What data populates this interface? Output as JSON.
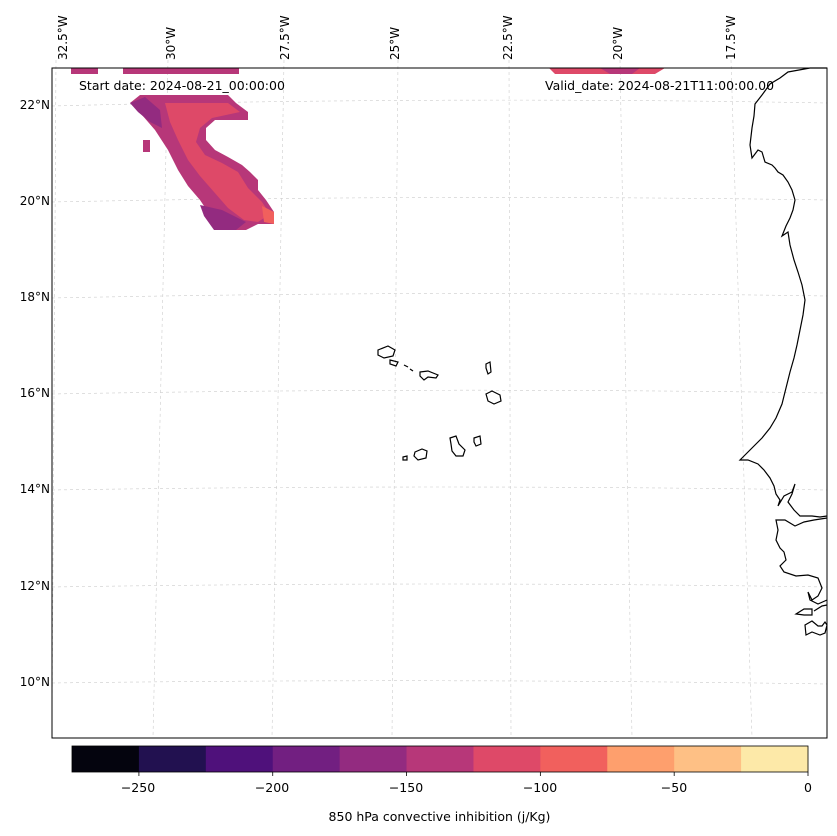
{
  "header": {
    "start_date": "Start date: 2024-08-21_00:00:00",
    "valid_date": "Valid_date: 2024-08-21T11:00:00.00"
  },
  "lon_labels": [
    "32.5°W",
    "30°W",
    "27.5°W",
    "25°W",
    "22.5°W",
    "20°W",
    "17.5°W"
  ],
  "lat_labels": [
    "22°N",
    "20°N",
    "18°N",
    "16°N",
    "14°N",
    "12°N",
    "10°N"
  ],
  "map": {
    "gridlines": "dashed",
    "coastline_color": "#000000",
    "field": "850 hPa convective inhibition"
  },
  "colorbar": {
    "label": "850 hPa convective inhibition (j/Kg)",
    "tick_labels": [
      "−250",
      "−200",
      "−150",
      "−100",
      "−50",
      "0"
    ],
    "bounds": [
      -275,
      -250,
      -225,
      -200,
      -175,
      -150,
      -125,
      -100,
      -75,
      -50,
      -25,
      0
    ],
    "colors": [
      "#04040e",
      "#221150",
      "#4f117b",
      "#721f81",
      "#932b80",
      "#b73779",
      "#de4968",
      "#f1605d",
      "#fe9f6d",
      "#fec085",
      "#fde9a8"
    ]
  }
}
